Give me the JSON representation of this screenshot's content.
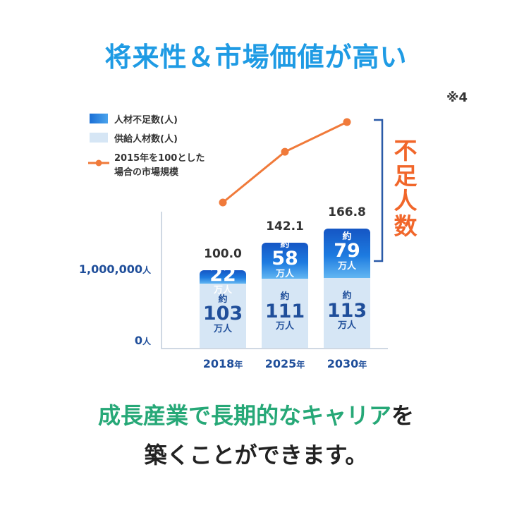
{
  "title": "将来性＆市場価値が高い",
  "note": "※4",
  "legend": [
    {
      "label": "人材不足数(人)",
      "kind": "bar",
      "color": "#1a6fd6"
    },
    {
      "label": "供給人材数(人)",
      "kind": "bar",
      "color": "#d6e6f5"
    },
    {
      "label": "2015年を100とした",
      "label2": "場合の市場規模",
      "kind": "line",
      "color": "#f07a3a"
    }
  ],
  "y_ticks": [
    {
      "value": "1,000,000",
      "unit": "人"
    },
    {
      "value": "0",
      "unit": "人"
    }
  ],
  "x_unit": "年",
  "bar_prefix": "約",
  "bar_suffix": "万人",
  "shortage_label": [
    "不",
    "足",
    "人",
    "数"
  ],
  "chart_data": {
    "type": "bar",
    "stacked": true,
    "categories": [
      "2018",
      "2025",
      "2030"
    ],
    "series": [
      {
        "name": "供給人材数(人)",
        "unit": "万人",
        "values": [
          103,
          111,
          113
        ],
        "color": "#d6e6f5"
      },
      {
        "name": "人材不足数(人)",
        "unit": "万人",
        "values": [
          22,
          58,
          79
        ],
        "color": "#1a6fd6"
      }
    ],
    "line": {
      "name": "2015年を100とした場合の市場規模",
      "values": [
        100.0,
        142.1,
        166.8
      ],
      "labels": [
        "100.0",
        "142.1",
        "166.8"
      ],
      "color": "#f07a3a"
    }
  },
  "tagline": {
    "line1_green": "成長産業で長期的なキャリア",
    "line1_dark": "を",
    "line2": "築くことができます。"
  }
}
